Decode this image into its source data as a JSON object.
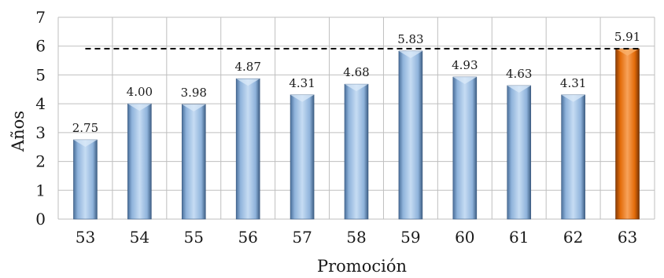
{
  "chart_data": {
    "type": "bar",
    "title": "",
    "xlabel": "Promoción",
    "ylabel": "Años",
    "categories": [
      "53",
      "54",
      "55",
      "56",
      "57",
      "58",
      "59",
      "60",
      "61",
      "62",
      "63"
    ],
    "values": [
      2.75,
      4.0,
      3.98,
      4.87,
      4.31,
      4.68,
      5.83,
      4.93,
      4.63,
      4.31,
      5.91
    ],
    "data_labels": [
      "2.75",
      "4.00",
      "3.98",
      "4.87",
      "4.31",
      "4.68",
      "5.83",
      "4.93",
      "4.63",
      "4.31",
      "5.91"
    ],
    "y_ticks": [
      "0",
      "1",
      "2",
      "3",
      "4",
      "5",
      "6",
      "7"
    ],
    "ylim": [
      0,
      7
    ],
    "grid": true,
    "reference_line": {
      "value": 5.91,
      "style": "dashed",
      "color": "#000000"
    },
    "colors": {
      "default_bar": "#8db4e2",
      "highlight_bar": "#e46c0a",
      "grid": "#bfbfbf"
    },
    "highlight_category": "63"
  }
}
